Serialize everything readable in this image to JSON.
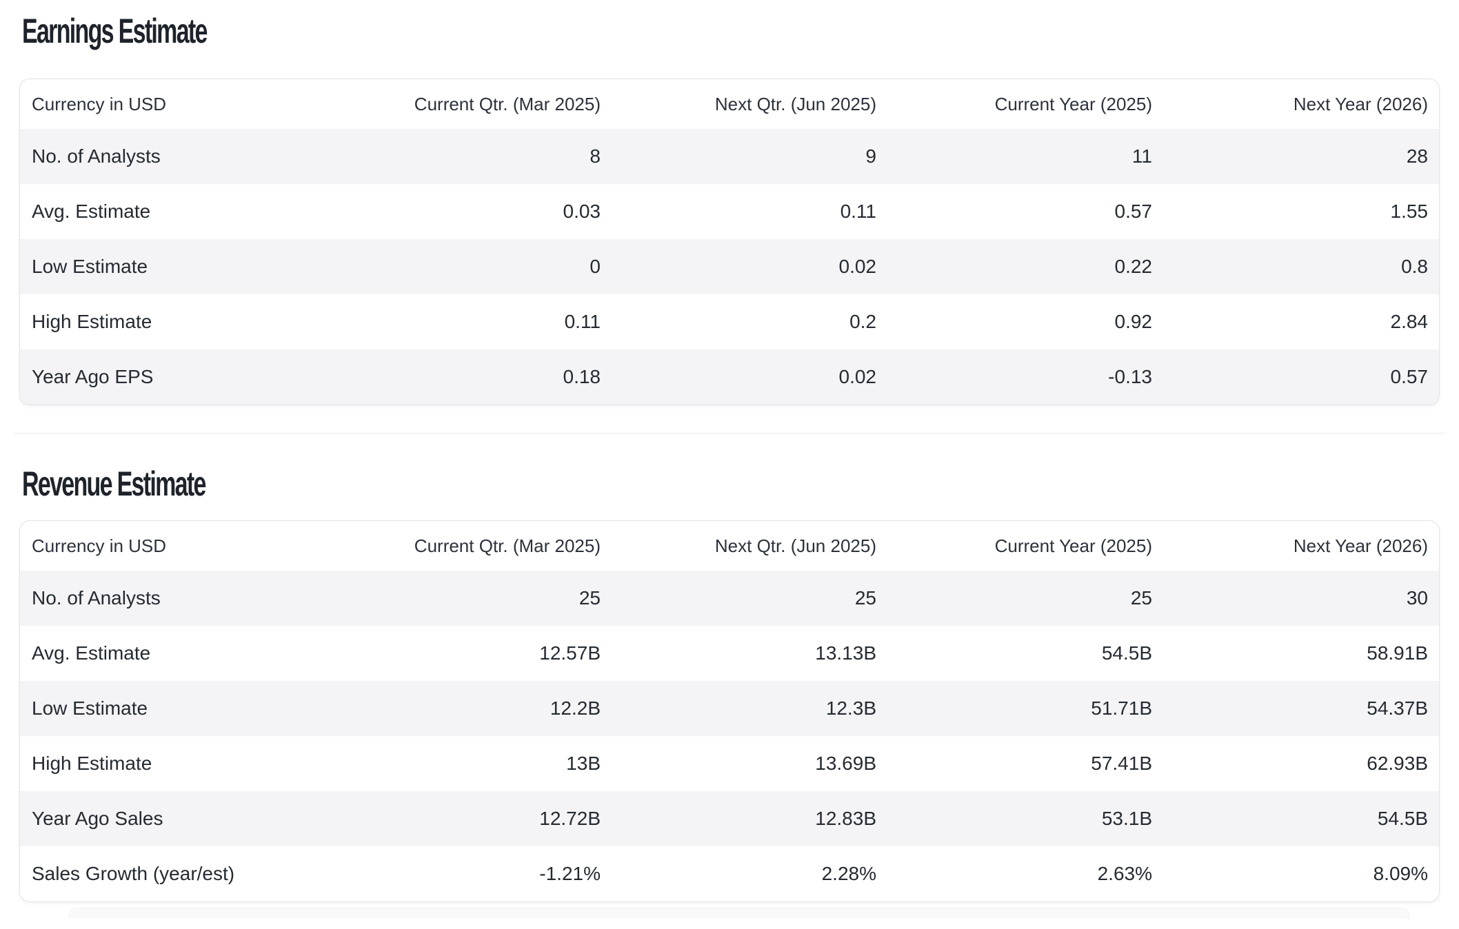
{
  "page": {
    "sections": [
      {
        "title": "Earnings Estimate",
        "columns": [
          "Currency in USD",
          "Current Qtr. (Mar 2025)",
          "Next Qtr. (Jun 2025)",
          "Current Year (2025)",
          "Next Year (2026)"
        ],
        "rows": [
          {
            "label": "No. of Analysts",
            "values": [
              "8",
              "9",
              "11",
              "28"
            ]
          },
          {
            "label": "Avg. Estimate",
            "values": [
              "0.03",
              "0.11",
              "0.57",
              "1.55"
            ]
          },
          {
            "label": "Low Estimate",
            "values": [
              "0",
              "0.02",
              "0.22",
              "0.8"
            ]
          },
          {
            "label": "High Estimate",
            "values": [
              "0.11",
              "0.2",
              "0.92",
              "2.84"
            ]
          },
          {
            "label": "Year Ago EPS",
            "values": [
              "0.18",
              "0.02",
              "-0.13",
              "0.57"
            ]
          }
        ]
      },
      {
        "title": "Revenue Estimate",
        "columns": [
          "Currency in USD",
          "Current Qtr. (Mar 2025)",
          "Next Qtr. (Jun 2025)",
          "Current Year (2025)",
          "Next Year (2026)"
        ],
        "rows": [
          {
            "label": "No. of Analysts",
            "values": [
              "25",
              "25",
              "25",
              "30"
            ]
          },
          {
            "label": "Avg. Estimate",
            "values": [
              "12.57B",
              "13.13B",
              "54.5B",
              "58.91B"
            ]
          },
          {
            "label": "Low Estimate",
            "values": [
              "12.2B",
              "12.3B",
              "51.71B",
              "54.37B"
            ]
          },
          {
            "label": "High Estimate",
            "values": [
              "13B",
              "13.69B",
              "57.41B",
              "62.93B"
            ]
          },
          {
            "label": "Year Ago Sales",
            "values": [
              "12.72B",
              "12.83B",
              "53.1B",
              "54.5B"
            ]
          },
          {
            "label": "Sales Growth (year/est)",
            "values": [
              "-1.21%",
              "2.28%",
              "2.63%",
              "8.09%"
            ]
          }
        ]
      }
    ],
    "colors": {
      "row_stripe": "#f4f4f6",
      "card_border": "#e3e3e9",
      "text": "#252a32",
      "title_text": "#1e232b",
      "divider": "#ebebf0",
      "background": "#ffffff"
    }
  }
}
